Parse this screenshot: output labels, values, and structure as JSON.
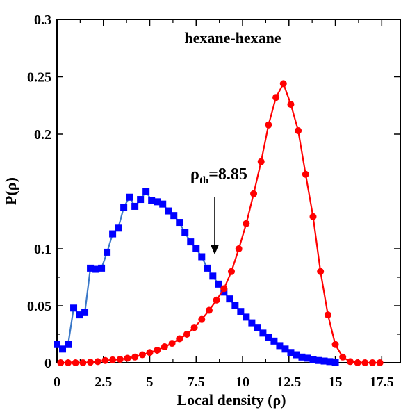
{
  "chart_data": {
    "type": "line",
    "title": "hexane-hexane",
    "xlabel": "Local density (ρ)",
    "ylabel": "P(ρ)",
    "xlim": [
      0,
      18.5
    ],
    "ylim": [
      0,
      0.3
    ],
    "x_ticks": [
      0,
      2.5,
      5,
      7.5,
      10,
      12.5,
      15,
      17.5
    ],
    "x_tick_labels": [
      "0",
      "2.5",
      "5",
      "7.5",
      "10",
      "12.5",
      "15",
      "17.5"
    ],
    "y_ticks": [
      0,
      0.05,
      0.1,
      0.2,
      0.25,
      0.3
    ],
    "y_tick_labels": [
      "0",
      "0.05",
      "0.1",
      "0.2",
      "0.25",
      "0.3"
    ],
    "grid": false,
    "annotation": {
      "symbol": "ρ",
      "subscript": "th",
      "value_text": "=8.85",
      "arrow_x": 8.5,
      "arrow_y_from": 0.145,
      "arrow_y_to": 0.095
    },
    "series": [
      {
        "marker": "square",
        "color": "#0000ff",
        "line_color": "#3a78c8",
        "x": [
          0,
          0.3,
          0.6,
          0.9,
          1.2,
          1.5,
          1.8,
          2.1,
          2.4,
          2.7,
          3.0,
          3.3,
          3.6,
          3.9,
          4.2,
          4.5,
          4.8,
          5.1,
          5.4,
          5.7,
          6.0,
          6.3,
          6.6,
          6.9,
          7.2,
          7.5,
          7.8,
          8.1,
          8.4,
          8.7,
          9.0,
          9.3,
          9.6,
          9.9,
          10.2,
          10.5,
          10.8,
          11.1,
          11.4,
          11.7,
          12.0,
          12.3,
          12.6,
          12.9,
          13.2,
          13.5,
          13.8,
          14.1,
          14.4,
          14.7,
          15.0
        ],
        "y": [
          0.016,
          0.012,
          0.016,
          0.048,
          0.042,
          0.044,
          0.083,
          0.082,
          0.083,
          0.097,
          0.113,
          0.118,
          0.136,
          0.145,
          0.137,
          0.143,
          0.15,
          0.142,
          0.141,
          0.139,
          0.133,
          0.129,
          0.123,
          0.114,
          0.106,
          0.1,
          0.093,
          0.083,
          0.076,
          0.069,
          0.062,
          0.056,
          0.05,
          0.045,
          0.04,
          0.035,
          0.031,
          0.026,
          0.022,
          0.019,
          0.015,
          0.012,
          0.009,
          0.007,
          0.005,
          0.004,
          0.003,
          0.002,
          0.0015,
          0.001,
          0.0005
        ]
      },
      {
        "marker": "circle",
        "color": "#ff0000",
        "line_color": "#ff0000",
        "x": [
          0.2,
          0.6,
          1.0,
          1.4,
          1.8,
          2.2,
          2.6,
          3.0,
          3.4,
          3.8,
          4.2,
          4.6,
          5.0,
          5.4,
          5.8,
          6.2,
          6.6,
          7.0,
          7.4,
          7.8,
          8.2,
          8.6,
          9.0,
          9.4,
          9.8,
          10.2,
          10.6,
          11.0,
          11.4,
          11.8,
          12.2,
          12.6,
          13.0,
          13.4,
          13.8,
          14.2,
          14.6,
          15.0,
          15.4,
          15.8,
          16.2,
          16.6,
          17.0,
          17.4
        ],
        "y": [
          0.0,
          0.0,
          0.0,
          0.0,
          0.0005,
          0.001,
          0.002,
          0.0025,
          0.003,
          0.004,
          0.005,
          0.007,
          0.009,
          0.011,
          0.014,
          0.017,
          0.021,
          0.025,
          0.031,
          0.038,
          0.046,
          0.055,
          0.065,
          0.08,
          0.1,
          0.122,
          0.148,
          0.176,
          0.208,
          0.232,
          0.244,
          0.226,
          0.203,
          0.165,
          0.128,
          0.08,
          0.042,
          0.016,
          0.005,
          0.001,
          0.0,
          0.0,
          0.0,
          0.0
        ]
      }
    ]
  }
}
